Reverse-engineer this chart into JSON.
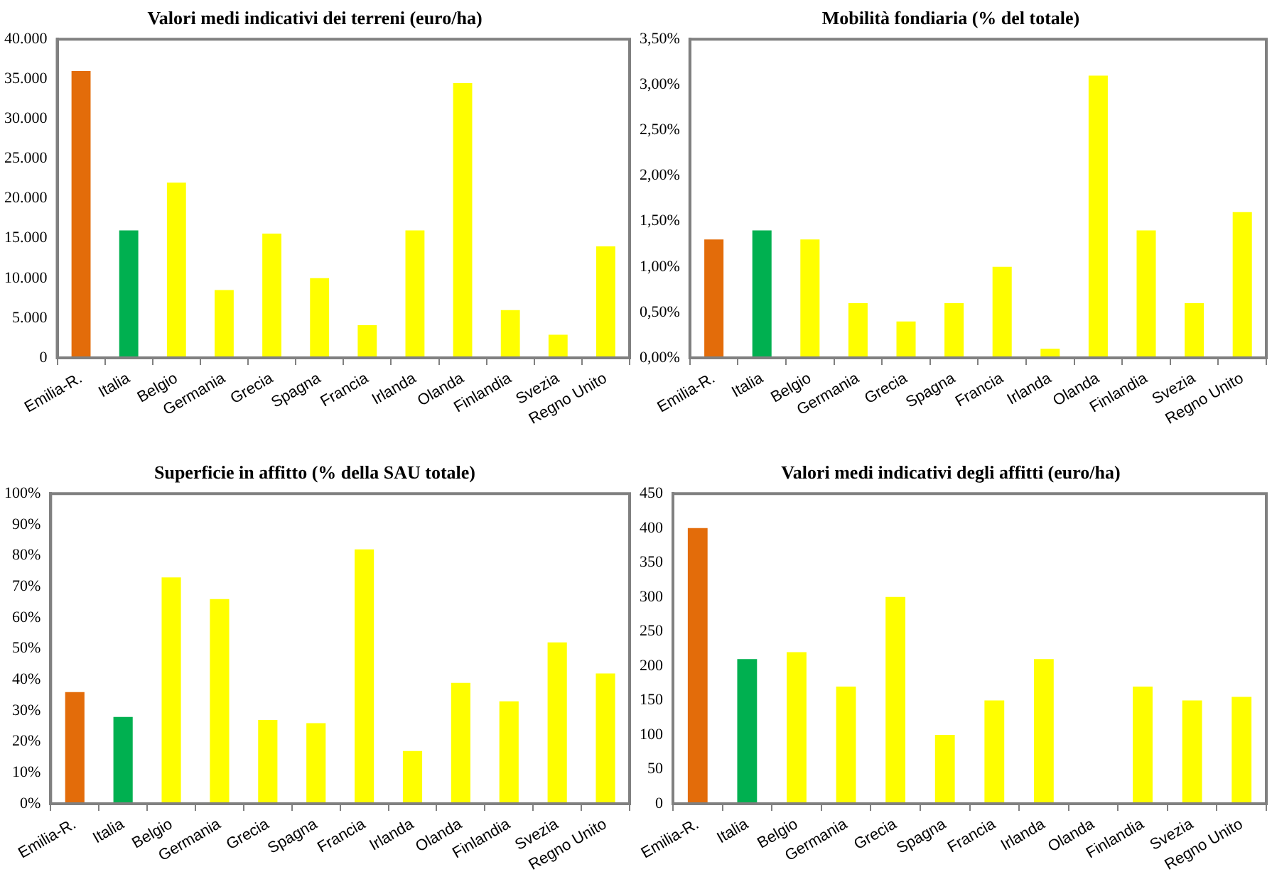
{
  "chart_data": [
    {
      "type": "bar",
      "title": "Valori medi indicativi dei terreni (euro/ha)",
      "categories": [
        "Emilia-R.",
        "Italia",
        "Belgio",
        "Germania",
        "Grecia",
        "Spagna",
        "Francia",
        "Irlanda",
        "Olanda",
        "Finlandia",
        "Svezia",
        "Regno Unito"
      ],
      "values": [
        36000,
        16000,
        22000,
        8500,
        15600,
        10000,
        4100,
        16000,
        34500,
        6000,
        2900,
        14000
      ],
      "colors": [
        "#e36c0a",
        "#00b050",
        "#ffff00",
        "#ffff00",
        "#ffff00",
        "#ffff00",
        "#ffff00",
        "#ffff00",
        "#ffff00",
        "#ffff00",
        "#ffff00",
        "#ffff00"
      ],
      "ylim": [
        0,
        40000
      ],
      "yticks": [
        0,
        {
          "value": 5000,
          "label": "5.000"
        },
        {
          "value": 10000,
          "label": "10.000"
        },
        {
          "value": 15000,
          "label": "15.000"
        },
        {
          "value": 20000,
          "label": "20.000"
        },
        {
          "value": 25000,
          "label": "25.000"
        },
        {
          "value": 30000,
          "label": "30.000"
        },
        {
          "value": 35000,
          "label": "35.000"
        },
        {
          "value": 40000,
          "label": "40.000"
        }
      ]
    },
    {
      "type": "bar",
      "title": "Mobilità fondiaria (% del totale)",
      "categories": [
        "Emilia-R.",
        "Italia",
        "Belgio",
        "Germania",
        "Grecia",
        "Spagna",
        "Francia",
        "Irlanda",
        "Olanda",
        "Finlandia",
        "Svezia",
        "Regno Unito"
      ],
      "values": [
        1.3,
        1.4,
        1.3,
        0.6,
        0.4,
        0.6,
        1.0,
        0.1,
        3.1,
        1.4,
        0.6,
        1.6
      ],
      "colors": [
        "#e36c0a",
        "#00b050",
        "#ffff00",
        "#ffff00",
        "#ffff00",
        "#ffff00",
        "#ffff00",
        "#ffff00",
        "#ffff00",
        "#ffff00",
        "#ffff00",
        "#ffff00"
      ],
      "ylim": [
        0,
        3.5
      ],
      "yticks": [
        {
          "value": 0,
          "label": "0,00%"
        },
        {
          "value": 0.5,
          "label": "0,50%"
        },
        {
          "value": 1,
          "label": "1,00%"
        },
        {
          "value": 1.5,
          "label": "1,50%"
        },
        {
          "value": 2,
          "label": "2,00%"
        },
        {
          "value": 2.5,
          "label": "2,50%"
        },
        {
          "value": 3,
          "label": "3,00%"
        },
        {
          "value": 3.5,
          "label": "3,50%"
        }
      ]
    },
    {
      "type": "bar",
      "title": "Superficie in affitto (% della SAU totale)",
      "categories": [
        "Emilia-R.",
        "Italia",
        "Belgio",
        "Germania",
        "Grecia",
        "Spagna",
        "Francia",
        "Irlanda",
        "Olanda",
        "Finlandia",
        "Svezia",
        "Regno Unito"
      ],
      "values": [
        36,
        28,
        73,
        66,
        27,
        26,
        82,
        17,
        39,
        33,
        52,
        42
      ],
      "colors": [
        "#e36c0a",
        "#00b050",
        "#ffff00",
        "#ffff00",
        "#ffff00",
        "#ffff00",
        "#ffff00",
        "#ffff00",
        "#ffff00",
        "#ffff00",
        "#ffff00",
        "#ffff00"
      ],
      "ylim": [
        0,
        100
      ],
      "yticks": [
        {
          "value": 0,
          "label": "0%"
        },
        {
          "value": 10,
          "label": "10%"
        },
        {
          "value": 20,
          "label": "20%"
        },
        {
          "value": 30,
          "label": "30%"
        },
        {
          "value": 40,
          "label": "40%"
        },
        {
          "value": 50,
          "label": "50%"
        },
        {
          "value": 60,
          "label": "60%"
        },
        {
          "value": 70,
          "label": "70%"
        },
        {
          "value": 80,
          "label": "80%"
        },
        {
          "value": 90,
          "label": "90%"
        },
        {
          "value": 100,
          "label": "100%"
        }
      ]
    },
    {
      "type": "bar",
      "title": "Valori medi indicativi degli affitti (euro/ha)",
      "categories": [
        "Emilia-R.",
        "Italia",
        "Belgio",
        "Germania",
        "Grecia",
        "Spagna",
        "Francia",
        "Irlanda",
        "Olanda",
        "Finlandia",
        "Svezia",
        "Regno Unito"
      ],
      "values": [
        400,
        210,
        220,
        170,
        300,
        100,
        150,
        210,
        null,
        170,
        150,
        155
      ],
      "colors": [
        "#e36c0a",
        "#00b050",
        "#ffff00",
        "#ffff00",
        "#ffff00",
        "#ffff00",
        "#ffff00",
        "#ffff00",
        "#ffff00",
        "#ffff00",
        "#ffff00",
        "#ffff00"
      ],
      "ylim": [
        0,
        450
      ],
      "yticks": [
        0,
        50,
        100,
        150,
        200,
        250,
        300,
        350,
        400,
        450
      ]
    }
  ]
}
